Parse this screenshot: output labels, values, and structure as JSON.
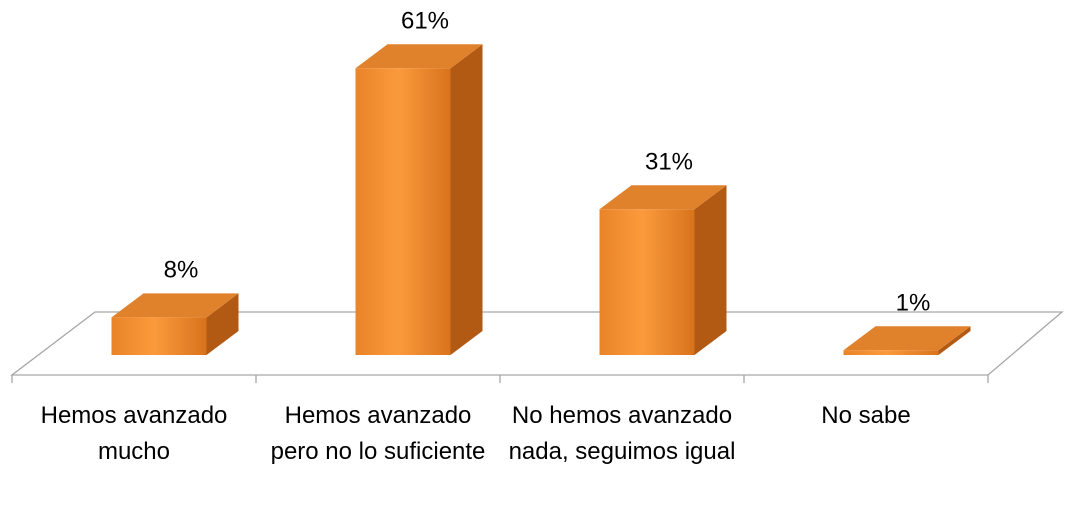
{
  "chart_data": {
    "type": "bar3d",
    "categories": [
      "Hemos avanzado mucho",
      "Hemos avanzado pero no lo suficiente",
      "No hemos avanzado nada, seguimos igual",
      "No sabe"
    ],
    "values": [
      8,
      61,
      31,
      1
    ],
    "value_labels": [
      "8%",
      "61%",
      "31%",
      "1%"
    ],
    "color": "#f7943a"
  }
}
